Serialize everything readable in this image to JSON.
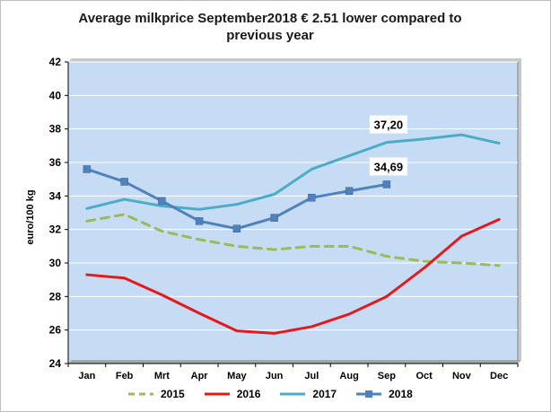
{
  "title": "Average milkprice  September2018 € 2.51 lower compared to previous year",
  "chart_data": {
    "type": "line",
    "title": "Average milkprice  September2018 € 2.51 lower compared to previous year",
    "ylabel": "euro/100 kg",
    "xlabel": "",
    "categories": [
      "Jan",
      "Feb",
      "Mrt",
      "Apr",
      "May",
      "Jun",
      "Jul",
      "Aug",
      "Sep",
      "Oct",
      "Nov",
      "Dec"
    ],
    "ylim": [
      24,
      42
    ],
    "yticks": [
      "24",
      "26",
      "28",
      "30",
      "32",
      "34",
      "36",
      "38",
      "40",
      "42"
    ],
    "grid": "horizontal",
    "legend_position": "bottom",
    "series": [
      {
        "name": "2015",
        "color": "#9bbb59",
        "dash": true,
        "values": [
          32.5,
          32.9,
          31.9,
          31.4,
          31.0,
          30.8,
          31.0,
          31.0,
          30.4,
          30.1,
          30.0,
          29.85
        ]
      },
      {
        "name": "2016",
        "color": "#e31a1c",
        "dash": false,
        "values": [
          29.3,
          29.1,
          28.1,
          27.0,
          25.95,
          25.8,
          26.2,
          26.95,
          28.0,
          29.7,
          31.6,
          32.6
        ]
      },
      {
        "name": "2017",
        "color": "#4bacc6",
        "dash": false,
        "values": [
          33.25,
          33.8,
          33.4,
          33.2,
          33.5,
          34.1,
          35.6,
          36.4,
          37.2,
          37.4,
          37.65,
          37.15
        ]
      },
      {
        "name": "2018",
        "color": "#4f81bd",
        "dash": false,
        "markers": true,
        "values": [
          35.6,
          34.85,
          33.7,
          32.5,
          32.05,
          32.7,
          33.9,
          34.3,
          34.69,
          null,
          null,
          null
        ]
      }
    ],
    "annotations": [
      {
        "text": "37,20",
        "series": "2017",
        "category": "Sep"
      },
      {
        "text": "34,69",
        "series": "2018",
        "category": "Sep"
      }
    ]
  }
}
